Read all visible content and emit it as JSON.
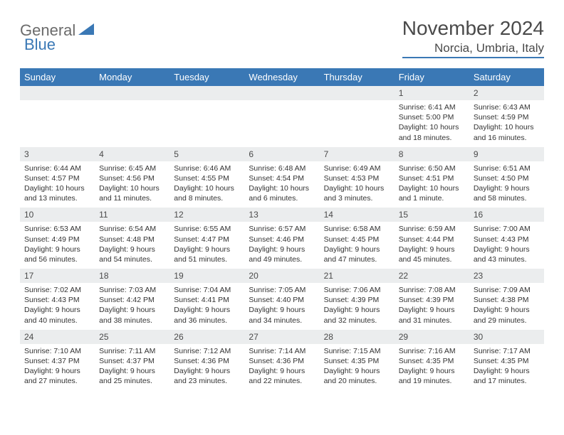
{
  "logo": {
    "part1": "General",
    "part2": "Blue"
  },
  "title": "November 2024",
  "location": "Norcia, Umbria, Italy",
  "colors": {
    "header_bg": "#3a78b5",
    "daynum_bg": "#ebedee",
    "border": "#bfc8d0",
    "text": "#333333",
    "title_text": "#4a4a4a"
  },
  "day_names": [
    "Sunday",
    "Monday",
    "Tuesday",
    "Wednesday",
    "Thursday",
    "Friday",
    "Saturday"
  ],
  "weeks": [
    [
      null,
      null,
      null,
      null,
      null,
      {
        "n": "1",
        "sr": "Sunrise: 6:41 AM",
        "ss": "Sunset: 5:00 PM",
        "dl": "Daylight: 10 hours and 18 minutes."
      },
      {
        "n": "2",
        "sr": "Sunrise: 6:43 AM",
        "ss": "Sunset: 4:59 PM",
        "dl": "Daylight: 10 hours and 16 minutes."
      }
    ],
    [
      {
        "n": "3",
        "sr": "Sunrise: 6:44 AM",
        "ss": "Sunset: 4:57 PM",
        "dl": "Daylight: 10 hours and 13 minutes."
      },
      {
        "n": "4",
        "sr": "Sunrise: 6:45 AM",
        "ss": "Sunset: 4:56 PM",
        "dl": "Daylight: 10 hours and 11 minutes."
      },
      {
        "n": "5",
        "sr": "Sunrise: 6:46 AM",
        "ss": "Sunset: 4:55 PM",
        "dl": "Daylight: 10 hours and 8 minutes."
      },
      {
        "n": "6",
        "sr": "Sunrise: 6:48 AM",
        "ss": "Sunset: 4:54 PM",
        "dl": "Daylight: 10 hours and 6 minutes."
      },
      {
        "n": "7",
        "sr": "Sunrise: 6:49 AM",
        "ss": "Sunset: 4:53 PM",
        "dl": "Daylight: 10 hours and 3 minutes."
      },
      {
        "n": "8",
        "sr": "Sunrise: 6:50 AM",
        "ss": "Sunset: 4:51 PM",
        "dl": "Daylight: 10 hours and 1 minute."
      },
      {
        "n": "9",
        "sr": "Sunrise: 6:51 AM",
        "ss": "Sunset: 4:50 PM",
        "dl": "Daylight: 9 hours and 58 minutes."
      }
    ],
    [
      {
        "n": "10",
        "sr": "Sunrise: 6:53 AM",
        "ss": "Sunset: 4:49 PM",
        "dl": "Daylight: 9 hours and 56 minutes."
      },
      {
        "n": "11",
        "sr": "Sunrise: 6:54 AM",
        "ss": "Sunset: 4:48 PM",
        "dl": "Daylight: 9 hours and 54 minutes."
      },
      {
        "n": "12",
        "sr": "Sunrise: 6:55 AM",
        "ss": "Sunset: 4:47 PM",
        "dl": "Daylight: 9 hours and 51 minutes."
      },
      {
        "n": "13",
        "sr": "Sunrise: 6:57 AM",
        "ss": "Sunset: 4:46 PM",
        "dl": "Daylight: 9 hours and 49 minutes."
      },
      {
        "n": "14",
        "sr": "Sunrise: 6:58 AM",
        "ss": "Sunset: 4:45 PM",
        "dl": "Daylight: 9 hours and 47 minutes."
      },
      {
        "n": "15",
        "sr": "Sunrise: 6:59 AM",
        "ss": "Sunset: 4:44 PM",
        "dl": "Daylight: 9 hours and 45 minutes."
      },
      {
        "n": "16",
        "sr": "Sunrise: 7:00 AM",
        "ss": "Sunset: 4:43 PM",
        "dl": "Daylight: 9 hours and 43 minutes."
      }
    ],
    [
      {
        "n": "17",
        "sr": "Sunrise: 7:02 AM",
        "ss": "Sunset: 4:43 PM",
        "dl": "Daylight: 9 hours and 40 minutes."
      },
      {
        "n": "18",
        "sr": "Sunrise: 7:03 AM",
        "ss": "Sunset: 4:42 PM",
        "dl": "Daylight: 9 hours and 38 minutes."
      },
      {
        "n": "19",
        "sr": "Sunrise: 7:04 AM",
        "ss": "Sunset: 4:41 PM",
        "dl": "Daylight: 9 hours and 36 minutes."
      },
      {
        "n": "20",
        "sr": "Sunrise: 7:05 AM",
        "ss": "Sunset: 4:40 PM",
        "dl": "Daylight: 9 hours and 34 minutes."
      },
      {
        "n": "21",
        "sr": "Sunrise: 7:06 AM",
        "ss": "Sunset: 4:39 PM",
        "dl": "Daylight: 9 hours and 32 minutes."
      },
      {
        "n": "22",
        "sr": "Sunrise: 7:08 AM",
        "ss": "Sunset: 4:39 PM",
        "dl": "Daylight: 9 hours and 31 minutes."
      },
      {
        "n": "23",
        "sr": "Sunrise: 7:09 AM",
        "ss": "Sunset: 4:38 PM",
        "dl": "Daylight: 9 hours and 29 minutes."
      }
    ],
    [
      {
        "n": "24",
        "sr": "Sunrise: 7:10 AM",
        "ss": "Sunset: 4:37 PM",
        "dl": "Daylight: 9 hours and 27 minutes."
      },
      {
        "n": "25",
        "sr": "Sunrise: 7:11 AM",
        "ss": "Sunset: 4:37 PM",
        "dl": "Daylight: 9 hours and 25 minutes."
      },
      {
        "n": "26",
        "sr": "Sunrise: 7:12 AM",
        "ss": "Sunset: 4:36 PM",
        "dl": "Daylight: 9 hours and 23 minutes."
      },
      {
        "n": "27",
        "sr": "Sunrise: 7:14 AM",
        "ss": "Sunset: 4:36 PM",
        "dl": "Daylight: 9 hours and 22 minutes."
      },
      {
        "n": "28",
        "sr": "Sunrise: 7:15 AM",
        "ss": "Sunset: 4:35 PM",
        "dl": "Daylight: 9 hours and 20 minutes."
      },
      {
        "n": "29",
        "sr": "Sunrise: 7:16 AM",
        "ss": "Sunset: 4:35 PM",
        "dl": "Daylight: 9 hours and 19 minutes."
      },
      {
        "n": "30",
        "sr": "Sunrise: 7:17 AM",
        "ss": "Sunset: 4:35 PM",
        "dl": "Daylight: 9 hours and 17 minutes."
      }
    ]
  ]
}
